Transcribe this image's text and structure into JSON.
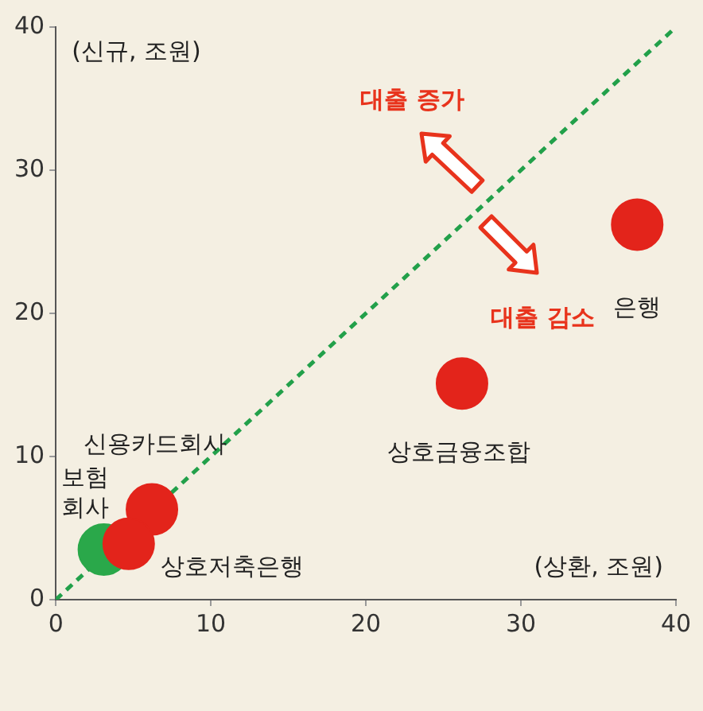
{
  "chart_data": {
    "type": "scatter",
    "xlabel": "(상환, 조원)",
    "ylabel": "(신규, 조원)",
    "xlim": [
      0,
      40
    ],
    "ylim": [
      0,
      40
    ],
    "xticks": [
      0,
      10,
      20,
      30,
      40
    ],
    "yticks": [
      0,
      10,
      20,
      30,
      40
    ],
    "grid": false,
    "legend": false,
    "marker": "circle",
    "series": [
      {
        "type": "line",
        "x": [
          0,
          40
        ],
        "values": [
          0,
          40
        ],
        "color": "#22a04a",
        "line_style": "dashed",
        "marker": "none"
      },
      {
        "name": "은행",
        "x": [
          37.5
        ],
        "values": [
          26.2
        ],
        "color": "#e3241b"
      },
      {
        "name": "상호금융조합",
        "x": [
          26.2
        ],
        "values": [
          15.1
        ],
        "color": "#e3241b"
      },
      {
        "name": "신용카드회사",
        "x": [
          6.2
        ],
        "values": [
          6.3
        ],
        "color": "#e3241b"
      },
      {
        "name": "보험\n회사",
        "x": [
          3.1
        ],
        "values": [
          3.5
        ],
        "color": "#2aa84a"
      },
      {
        "name": "상호저축은행",
        "x": [
          4.7
        ],
        "values": [
          3.9
        ],
        "color": "#e3241b"
      }
    ],
    "annotations": [
      "대출 증가",
      "대출 감소"
    ]
  }
}
